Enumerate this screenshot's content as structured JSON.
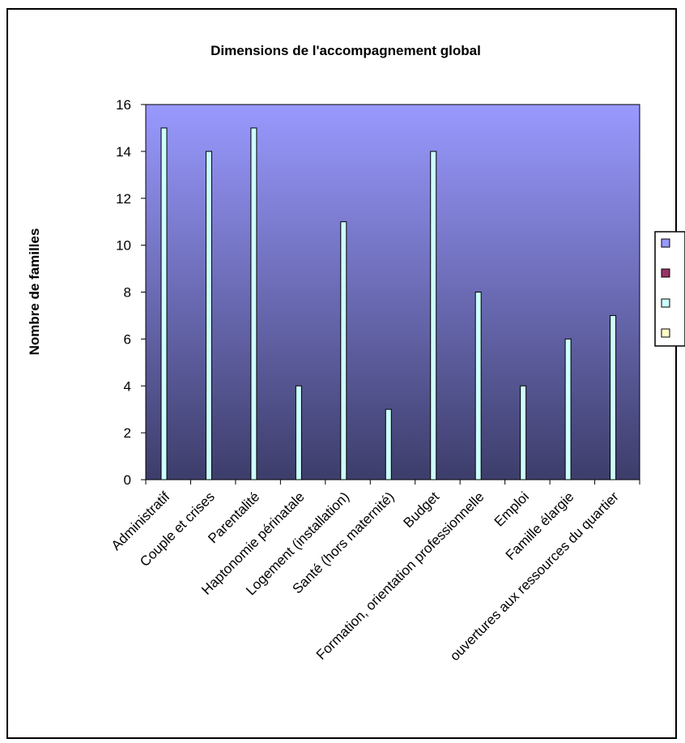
{
  "chart_data": {
    "type": "bar",
    "title": "Dimensions de l'accompagnement global",
    "xlabel": "",
    "ylabel": "Nombre de familles",
    "ylim": [
      0,
      16
    ],
    "yticks": [
      0,
      2,
      4,
      6,
      8,
      10,
      12,
      14,
      16
    ],
    "grid": false,
    "legend_position": "right",
    "categories": [
      "Administratif",
      "Couple et crises",
      "Parentalité",
      "Haptonomie périnatale",
      "Logement (installation)",
      "Santé (hors maternité)",
      "Budget",
      "Formation, orientation professionnelle",
      "Emploi",
      "Famille élargie",
      "ouvertures aux ressources du quartier"
    ],
    "series": [
      {
        "color": "#CCFFFF",
        "values": [
          15,
          14,
          15,
          4,
          11,
          3,
          14,
          8,
          4,
          6,
          7
        ]
      }
    ],
    "legend_swatches": [
      "#9999FF",
      "#993366",
      "#CCFFFF",
      "#FFFFCC"
    ],
    "plot_background": {
      "top": "#9999FF",
      "bottom": "#3D3D6B"
    }
  }
}
